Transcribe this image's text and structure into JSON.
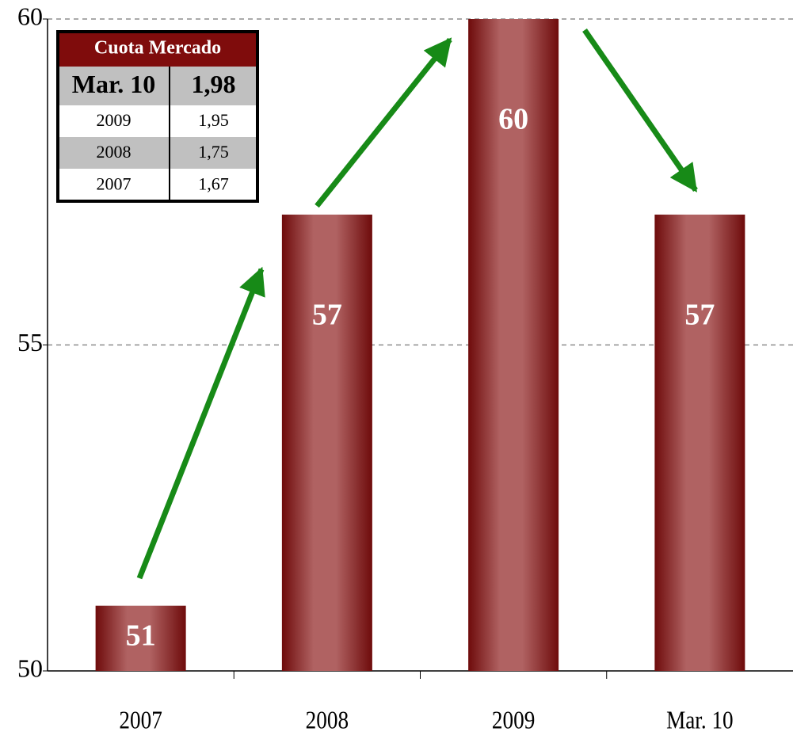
{
  "chart_data": {
    "type": "bar",
    "categories": [
      "2007",
      "2008",
      "2009",
      "Mar. 10"
    ],
    "values": [
      51,
      57,
      60,
      57
    ],
    "color": "#7a1212",
    "ylim": [
      50,
      60
    ],
    "yticks": [
      50,
      55,
      60
    ],
    "grid": true
  },
  "table": {
    "title": "Cuota Mercado",
    "rows": [
      [
        "Mar. 10",
        "1,98"
      ],
      [
        "2009",
        "1,95"
      ],
      [
        "2008",
        "1,75"
      ],
      [
        "2007",
        "1,67"
      ]
    ]
  }
}
